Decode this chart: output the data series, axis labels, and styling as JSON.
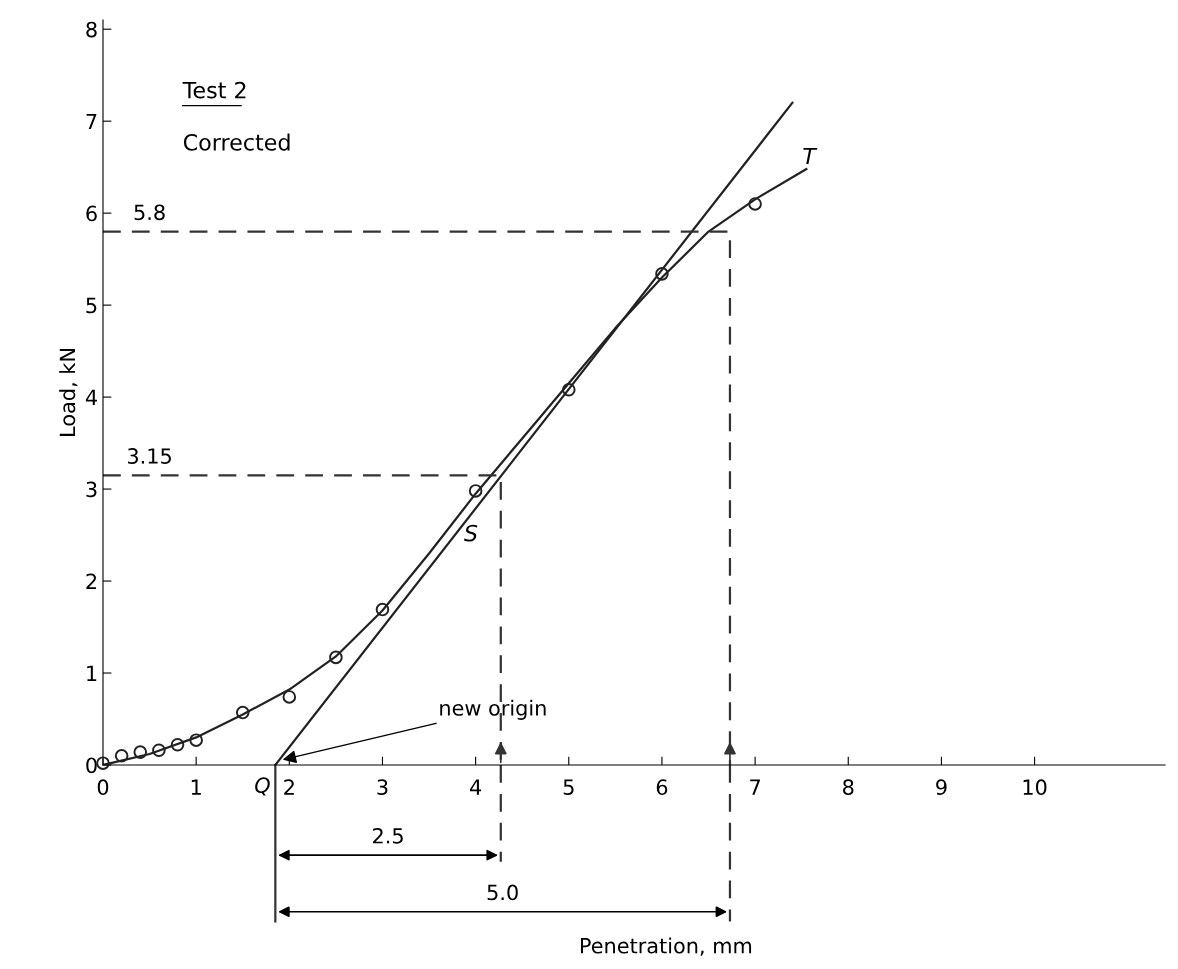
{
  "chart_data": {
    "type": "line",
    "ylabel": "Load, kN",
    "xlim": [
      0,
      11.4
    ],
    "ylim": [
      0,
      8.1
    ],
    "xticks": [
      0,
      1,
      2,
      3,
      4,
      5,
      6,
      7,
      8,
      9,
      10
    ],
    "yticks": [
      0,
      1,
      2,
      3,
      4,
      5,
      6,
      7,
      8
    ],
    "grid": false,
    "series": [
      {
        "type": "scatter",
        "marker": "circle",
        "color": "#222222",
        "x": [
          0,
          0.2,
          0.4,
          0.6,
          0.8,
          1.0,
          1.5,
          2.0,
          2.5,
          3.0,
          4.0,
          5.0,
          6.0,
          7.0
        ],
        "values": [
          0.02,
          0.1,
          0.14,
          0.16,
          0.22,
          0.27,
          0.57,
          0.74,
          1.17,
          1.69,
          2.98,
          4.08,
          5.34,
          6.1
        ]
      },
      {
        "line_style": "solid",
        "color": "#222222",
        "x": [
          0,
          0.5,
          1,
          1.5,
          2,
          2.5,
          3,
          3.5,
          4,
          4.5,
          5,
          5.5,
          6,
          6.5,
          7,
          7.55
        ],
        "values": [
          0,
          0.12,
          0.3,
          0.55,
          0.82,
          1.18,
          1.68,
          2.3,
          2.95,
          3.55,
          4.15,
          4.75,
          5.3,
          5.8,
          6.15,
          6.48
        ]
      },
      {
        "line_style": "solid",
        "color": "#222222",
        "x": [
          1.85,
          7.4
        ],
        "values": [
          0,
          7.2
        ]
      },
      {
        "line_style": "dashed",
        "color": "#333333",
        "x": [
          0,
          4.27,
          4.27
        ],
        "values": [
          3.15,
          3.15,
          0
        ]
      },
      {
        "line_style": "dashed",
        "color": "#333333",
        "x": [
          0,
          6.73,
          6.73
        ],
        "values": [
          5.8,
          5.8,
          0
        ]
      }
    ],
    "annotations": [
      "Test 2",
      "Corrected",
      "S",
      "T",
      "2.5",
      "5.0",
      "Penetration, mm",
      {
        "text": "3.15",
        "x": 0.5,
        "y": 3.15
      },
      {
        "text": "5.8",
        "x": 0.5,
        "y": 5.8
      },
      {
        "text": "new origin",
        "x": 1.9,
        "y": 0.05
      },
      {
        "text": "Q",
        "x": 1.85,
        "y": 0
      }
    ]
  }
}
